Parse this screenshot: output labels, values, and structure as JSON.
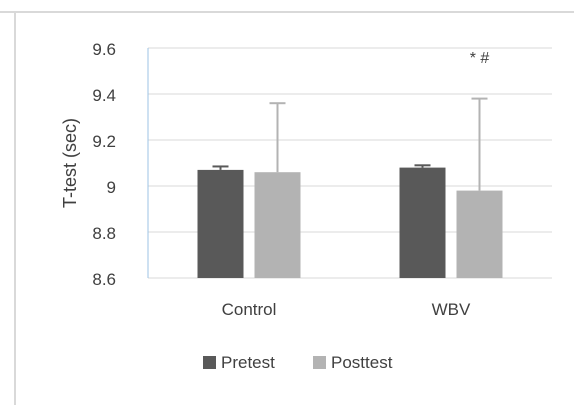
{
  "chart_data": {
    "type": "bar",
    "categories": [
      "Control",
      "WBV"
    ],
    "series": [
      {
        "name": "Pretest",
        "values": [
          9.07,
          9.08
        ],
        "error": [
          0.015,
          0.01
        ],
        "color": "#595959"
      },
      {
        "name": "Posttest",
        "values": [
          9.06,
          8.98
        ],
        "error": [
          0.3,
          0.4
        ],
        "color": "#b3b3b3"
      }
    ],
    "title": "",
    "xlabel": "",
    "ylabel": "T-test (sec)",
    "ylim": [
      8.6,
      9.6
    ],
    "yticks": [
      "8.6",
      "8.8",
      "9",
      "9.2",
      "9.4",
      "9.6"
    ],
    "grid": true,
    "legend": "bottom",
    "annotations": [
      {
        "category": "WBV",
        "series": "Posttest",
        "text": "* #"
      }
    ]
  }
}
